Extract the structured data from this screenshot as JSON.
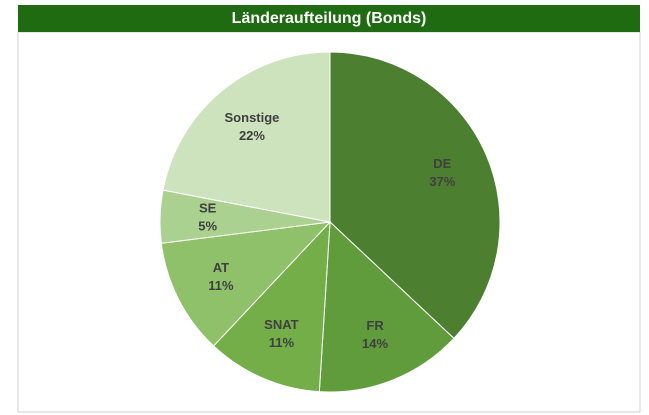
{
  "chart_data": {
    "type": "pie",
    "title": "Länderaufteilung (Bonds)",
    "categories": [
      "DE",
      "FR",
      "SNAT",
      "AT",
      "SE",
      "Sonstige"
    ],
    "values": [
      37,
      14,
      11,
      11,
      5,
      22
    ],
    "value_labels": [
      "37%",
      "14%",
      "11%",
      "11%",
      "5%",
      "22%"
    ],
    "colors": [
      "#4d7f30",
      "#609c3c",
      "#74ae48",
      "#8fc06a",
      "#abd190",
      "#cde3bd"
    ]
  }
}
